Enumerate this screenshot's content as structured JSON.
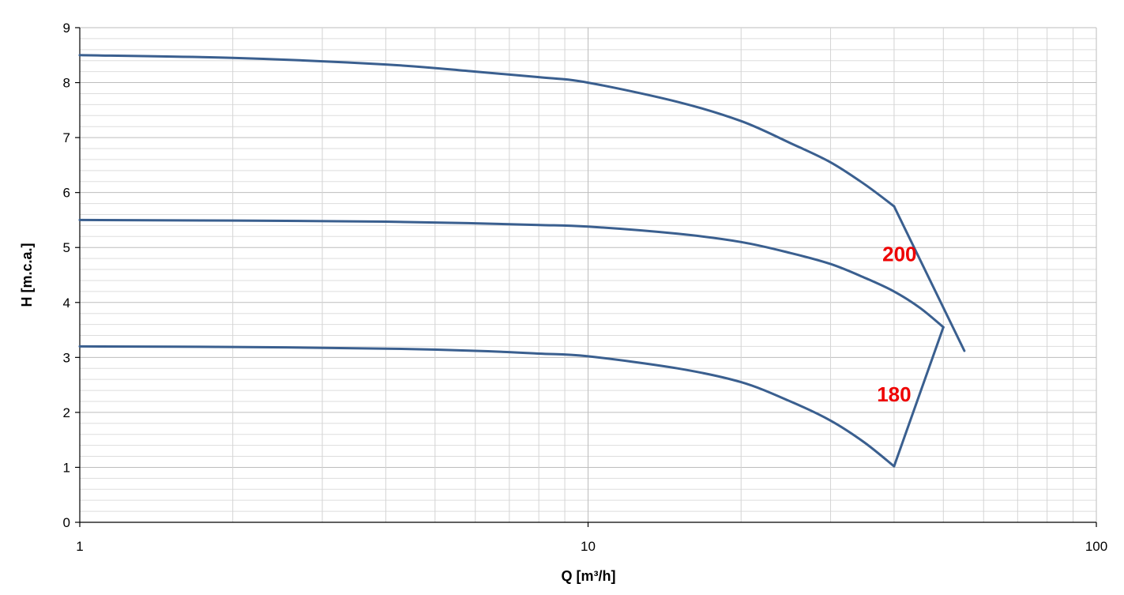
{
  "chart_data": {
    "type": "line",
    "title": "",
    "xlabel": "Q [m³/h]",
    "ylabel": "H [m.c.a.]",
    "xscale": "log",
    "xlim": [
      1,
      100
    ],
    "ylim": [
      0,
      9
    ],
    "x_ticks": [
      "1",
      "10",
      "100"
    ],
    "y_ticks": [
      "0",
      "1",
      "2",
      "3",
      "4",
      "5",
      "6",
      "7",
      "8",
      "9"
    ],
    "grid": true,
    "legend": "none",
    "line_color": "#3a5f8f",
    "series": [
      {
        "x": [
          1,
          2,
          4,
          6,
          8,
          10,
          15,
          20,
          25,
          30,
          35,
          40
        ],
        "y": [
          8.5,
          8.45,
          8.33,
          8.2,
          8.1,
          8.0,
          7.65,
          7.3,
          6.9,
          6.55,
          6.15,
          5.75
        ]
      },
      {
        "x": [
          1,
          2,
          4,
          6,
          8,
          10,
          15,
          20,
          25,
          30,
          35,
          40,
          45,
          50
        ],
        "y": [
          5.5,
          5.49,
          5.47,
          5.44,
          5.41,
          5.38,
          5.25,
          5.1,
          4.9,
          4.7,
          4.45,
          4.2,
          3.9,
          3.55
        ]
      },
      {
        "x": [
          1,
          2,
          4,
          6,
          8,
          10,
          15,
          20,
          25,
          30,
          35,
          40
        ],
        "y": [
          3.2,
          3.19,
          3.16,
          3.12,
          3.07,
          3.02,
          2.8,
          2.55,
          2.2,
          1.85,
          1.45,
          1.02
        ]
      },
      {
        "x": [
          40,
          55
        ],
        "y": [
          5.75,
          3.12
        ]
      },
      {
        "x": [
          40,
          50
        ],
        "y": [
          1.02,
          3.55
        ]
      }
    ],
    "annotations": [
      {
        "text": "200",
        "x": 41,
        "y": 4.75
      },
      {
        "text": "180",
        "x": 40,
        "y": 2.2
      }
    ]
  }
}
